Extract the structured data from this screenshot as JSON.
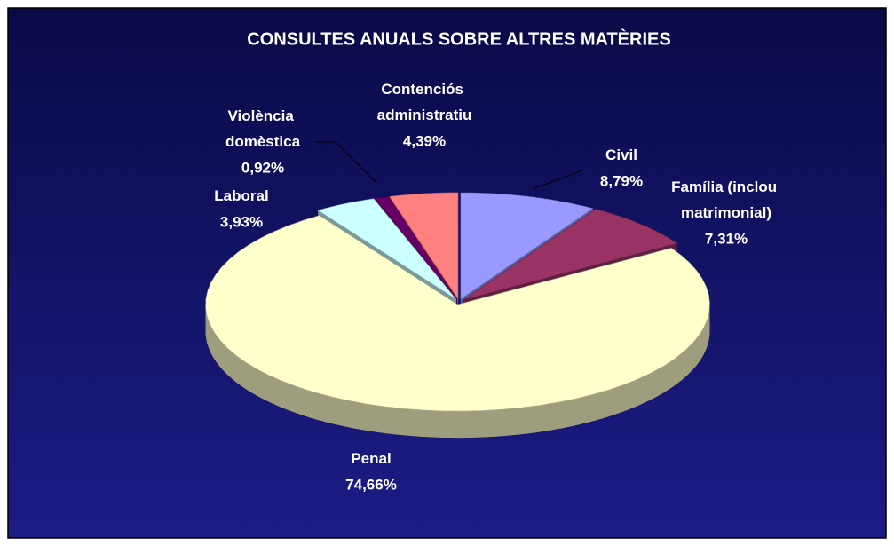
{
  "chart_data": {
    "type": "pie3d",
    "title": "CONSULTES ANUALS SOBRE ALTRES MATÈRIES",
    "categories": [
      "Civil",
      "Família (inclou matrimonial)",
      "Penal",
      "Laboral",
      "Violència domèstica",
      "Contenciós administratiu"
    ],
    "values": [
      8.79,
      7.31,
      74.66,
      3.93,
      0.92,
      4.39
    ],
    "value_labels": [
      "8,79%",
      "7,31%",
      "74,66%",
      "3,93%",
      "0,92%",
      "4,39%"
    ],
    "colors": [
      "#9999ff",
      "#993366",
      "#ffffcc",
      "#ccffff",
      "#660066",
      "#ff8080"
    ]
  }
}
